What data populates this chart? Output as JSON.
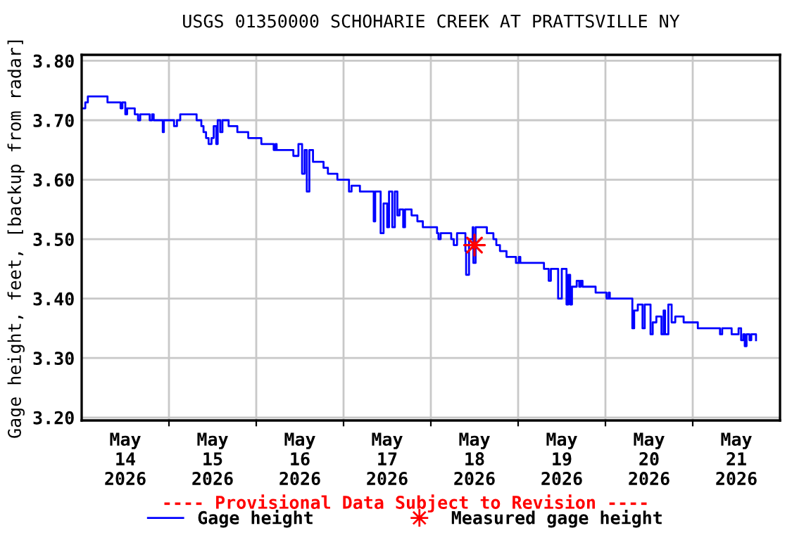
{
  "chart_data": {
    "type": "step",
    "title": "USGS 01350000 SCHOHARIE CREEK AT PRATTSVILLE NY",
    "ylabel": "Gage height, feet, [backup from radar]",
    "annotations": [
      "---- Provisional Data Subject to Revision ----"
    ],
    "xlim": [
      "2026-05-14T00:00",
      "2026-05-22T00:00"
    ],
    "xticks": [
      {
        "value": "2026-05-14T12:00",
        "label": "May\n14\n2026"
      },
      {
        "value": "2026-05-15T12:00",
        "label": "May\n15\n2026"
      },
      {
        "value": "2026-05-16T12:00",
        "label": "May\n16\n2026"
      },
      {
        "value": "2026-05-17T12:00",
        "label": "May\n17\n2026"
      },
      {
        "value": "2026-05-18T12:00",
        "label": "May\n18\n2026"
      },
      {
        "value": "2026-05-19T12:00",
        "label": "May\n19\n2026"
      },
      {
        "value": "2026-05-20T12:00",
        "label": "May\n20\n2026"
      },
      {
        "value": "2026-05-21T12:00",
        "label": "May\n21\n2026"
      },
      {
        "value": "2026-05-15T00:00",
        "label": null
      },
      {
        "value": "2026-05-16T00:00",
        "label": null
      },
      {
        "value": "2026-05-17T00:00",
        "label": null
      },
      {
        "value": "2026-05-18T00:00",
        "label": null
      },
      {
        "value": "2026-05-19T00:00",
        "label": null
      },
      {
        "value": "2026-05-20T00:00",
        "label": null
      },
      {
        "value": "2026-05-21T00:00",
        "label": null
      }
    ],
    "ylim": [
      3.195,
      3.81
    ],
    "yticks": [
      {
        "value": 3.2,
        "label": "3.20"
      },
      {
        "value": 3.3,
        "label": "3.30"
      },
      {
        "value": 3.4,
        "label": "3.40"
      },
      {
        "value": 3.5,
        "label": "3.50"
      },
      {
        "value": 3.6,
        "label": "3.60"
      },
      {
        "value": 3.7,
        "label": "3.70"
      },
      {
        "value": 3.8,
        "label": "3.80"
      }
    ],
    "grid": true,
    "legend": "bottom",
    "series": [
      {
        "name": "Gage height",
        "color": "#0000ff",
        "x": [
          "2026-05-14T00:00",
          "2026-05-14T01:00",
          "2026-05-14T01:42",
          "2026-05-14T07:06",
          "2026-05-14T10:42",
          "2026-05-14T11:12",
          "2026-05-14T12:00",
          "2026-05-14T12:30",
          "2026-05-14T14:36",
          "2026-05-14T15:30",
          "2026-05-14T16:06",
          "2026-05-14T18:42",
          "2026-05-14T19:21",
          "2026-05-14T19:48",
          "2026-05-14T22:18",
          "2026-05-14T22:36",
          "2026-05-15T01:24",
          "2026-05-15T02:12",
          "2026-05-15T03:06",
          "2026-05-15T07:36",
          "2026-05-15T08:54",
          "2026-05-15T09:30",
          "2026-05-15T10:12",
          "2026-05-15T10:54",
          "2026-05-15T11:42",
          "2026-05-15T12:18",
          "2026-05-15T13:00",
          "2026-05-15T13:24",
          "2026-05-15T14:06",
          "2026-05-15T14:42",
          "2026-05-15T16:24",
          "2026-05-15T18:48",
          "2026-05-15T21:48",
          "2026-05-16T01:24",
          "2026-05-16T04:48",
          "2026-05-16T05:18",
          "2026-05-16T05:36",
          "2026-05-16T10:12",
          "2026-05-16T11:36",
          "2026-05-16T12:36",
          "2026-05-16T13:18",
          "2026-05-16T13:54",
          "2026-05-16T14:36",
          "2026-05-16T15:36",
          "2026-05-16T18:30",
          "2026-05-16T19:42",
          "2026-05-16T22:18",
          "2026-05-17T01:30",
          "2026-05-17T02:12",
          "2026-05-17T04:30",
          "2026-05-17T08:18",
          "2026-05-17T08:42",
          "2026-05-17T10:12",
          "2026-05-17T11:00",
          "2026-05-17T12:00",
          "2026-05-17T12:30",
          "2026-05-17T13:24",
          "2026-05-17T14:06",
          "2026-05-17T14:48",
          "2026-05-17T15:24",
          "2026-05-17T16:24",
          "2026-05-17T16:54",
          "2026-05-17T18:42",
          "2026-05-17T20:18",
          "2026-05-17T21:48",
          "2026-05-18T01:42",
          "2026-05-18T02:06",
          "2026-05-18T02:42",
          "2026-05-18T05:36",
          "2026-05-18T06:18",
          "2026-05-18T07:12",
          "2026-05-18T09:30",
          "2026-05-18T09:42",
          "2026-05-18T10:30",
          "2026-05-18T11:30",
          "2026-05-18T11:42",
          "2026-05-18T12:18",
          "2026-05-18T15:24",
          "2026-05-18T17:12",
          "2026-05-18T18:00",
          "2026-05-18T19:00",
          "2026-05-18T20:48",
          "2026-05-18T23:24",
          "2026-05-19T00:12",
          "2026-05-19T00:36",
          "2026-05-19T07:06",
          "2026-05-19T08:24",
          "2026-05-19T09:00",
          "2026-05-19T11:00",
          "2026-05-19T12:00",
          "2026-05-19T13:18",
          "2026-05-19T13:48",
          "2026-05-19T14:18",
          "2026-05-19T14:48",
          "2026-05-19T16:06",
          "2026-05-19T16:48",
          "2026-05-19T17:12",
          "2026-05-19T17:42",
          "2026-05-19T21:18",
          "2026-05-20T00:18",
          "2026-05-20T00:54",
          "2026-05-20T01:12",
          "2026-05-20T07:24",
          "2026-05-20T07:54",
          "2026-05-20T08:54",
          "2026-05-20T10:12",
          "2026-05-20T10:48",
          "2026-05-20T12:24",
          "2026-05-20T13:00",
          "2026-05-20T14:00",
          "2026-05-20T15:24",
          "2026-05-20T16:00",
          "2026-05-20T16:24",
          "2026-05-20T17:18",
          "2026-05-20T18:12",
          "2026-05-20T19:12",
          "2026-05-20T21:30",
          "2026-05-21T01:24",
          "2026-05-21T07:30",
          "2026-05-21T08:06",
          "2026-05-21T10:42",
          "2026-05-21T12:36",
          "2026-05-21T13:18",
          "2026-05-21T13:54",
          "2026-05-21T14:18",
          "2026-05-21T14:48",
          "2026-05-21T15:36",
          "2026-05-21T16:06",
          "2026-05-21T17:24"
        ],
        "values": [
          3.72,
          3.73,
          3.74,
          3.73,
          3.72,
          3.73,
          3.71,
          3.72,
          3.71,
          3.7,
          3.71,
          3.7,
          3.71,
          3.7,
          3.68,
          3.7,
          3.69,
          3.7,
          3.71,
          3.7,
          3.69,
          3.68,
          3.67,
          3.66,
          3.67,
          3.69,
          3.66,
          3.7,
          3.68,
          3.7,
          3.69,
          3.68,
          3.67,
          3.66,
          3.65,
          3.66,
          3.65,
          3.64,
          3.66,
          3.61,
          3.65,
          3.58,
          3.65,
          3.63,
          3.62,
          3.61,
          3.6,
          3.58,
          3.59,
          3.58,
          3.53,
          3.58,
          3.51,
          3.56,
          3.52,
          3.58,
          3.52,
          3.58,
          3.54,
          3.55,
          3.52,
          3.55,
          3.54,
          3.53,
          3.52,
          3.51,
          3.5,
          3.51,
          3.5,
          3.49,
          3.51,
          3.48,
          3.44,
          3.5,
          3.52,
          3.46,
          3.52,
          3.51,
          3.5,
          3.49,
          3.48,
          3.47,
          3.46,
          3.47,
          3.46,
          3.45,
          3.43,
          3.45,
          3.4,
          3.45,
          3.39,
          3.44,
          3.39,
          3.42,
          3.43,
          3.42,
          3.43,
          3.42,
          3.41,
          3.4,
          3.41,
          3.4,
          3.35,
          3.38,
          3.39,
          3.35,
          3.39,
          3.34,
          3.36,
          3.37,
          3.34,
          3.38,
          3.34,
          3.39,
          3.36,
          3.37,
          3.36,
          3.35,
          3.34,
          3.35,
          3.34,
          3.35,
          3.33,
          3.34,
          3.32,
          3.34,
          3.33,
          3.34,
          3.33
        ]
      },
      {
        "name": "Measured gage height",
        "type": "scatter",
        "color": "#ff0000",
        "marker": "star",
        "x": [
          "2026-05-18T12:00"
        ],
        "values": [
          3.49
        ]
      }
    ]
  }
}
